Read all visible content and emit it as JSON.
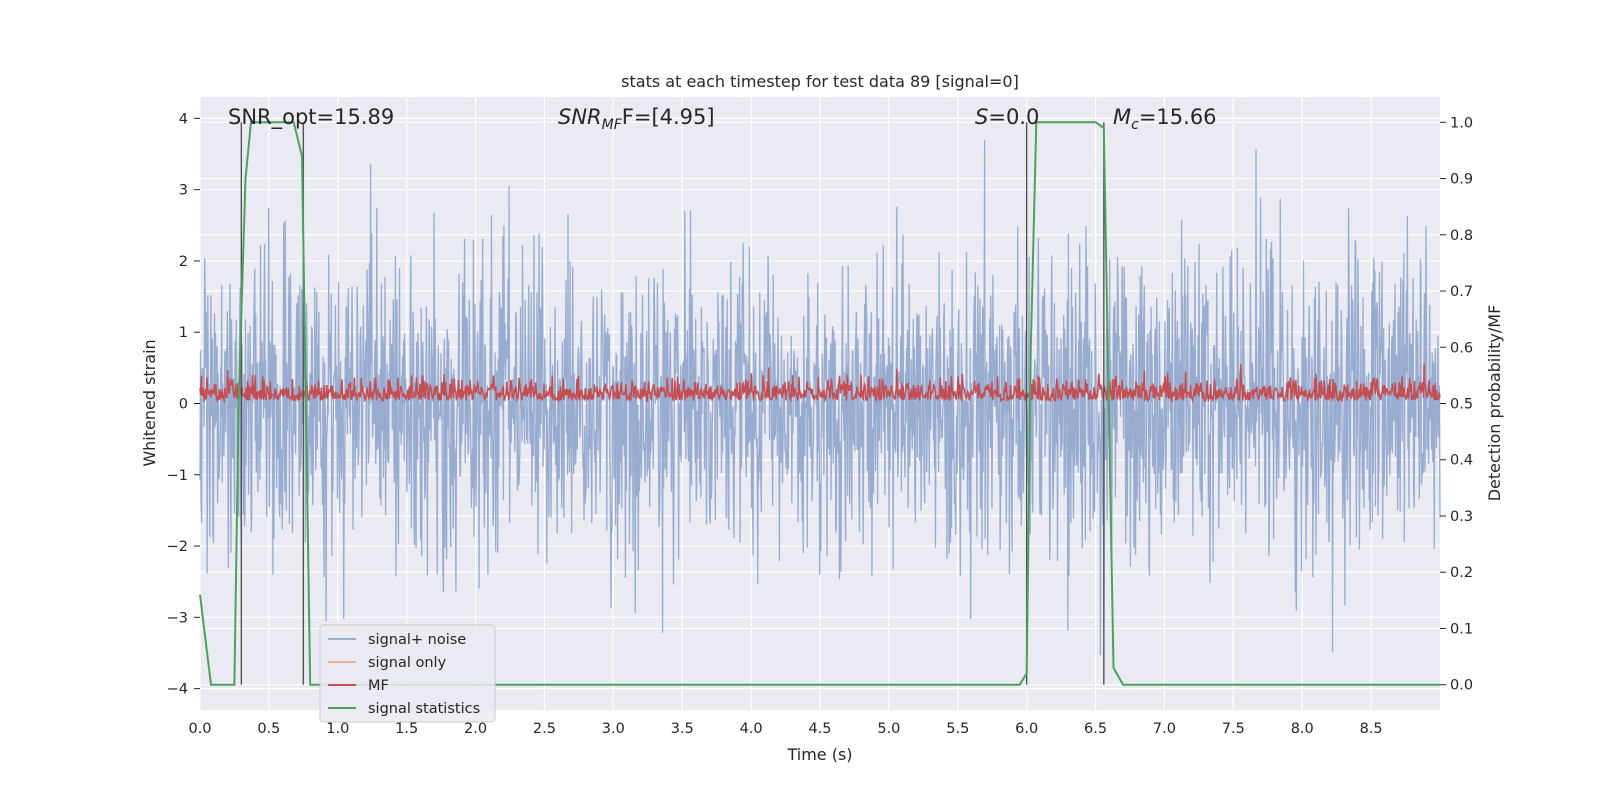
{
  "chart_data": {
    "type": "line",
    "title": "stats at each timestep for test data 89 [signal=0]",
    "xlabel": "Time (s)",
    "ylabel_left": "Whitened strain",
    "ylabel_right": "Detection probability/MF",
    "xlim": [
      0,
      9.0
    ],
    "ylim_left": [
      -4.3,
      4.3
    ],
    "ylim_right": [
      -0.045,
      1.045
    ],
    "x_ticks": [
      "0.0",
      "0.5",
      "1.0",
      "1.5",
      "2.0",
      "2.5",
      "3.0",
      "3.5",
      "4.0",
      "4.5",
      "5.0",
      "5.5",
      "6.0",
      "6.5",
      "7.0",
      "7.5",
      "8.0",
      "8.5"
    ],
    "y_left_ticks": [
      "4",
      "3",
      "2",
      "1",
      "0",
      "−1",
      "−2",
      "−3",
      "−4"
    ],
    "y_right_ticks": [
      "1.0",
      "0.9",
      "0.8",
      "0.7",
      "0.6",
      "0.5",
      "0.4",
      "0.3",
      "0.2",
      "0.1",
      "0.0"
    ],
    "grid": true,
    "legend_position": "lower-left",
    "annotations": {
      "snr_opt": "SNR_opt=15.89",
      "snr_mf_prefix": "SNR",
      "snr_mf_sub": "MF",
      "snr_mf_value": "F=[4.95]",
      "s_label": "S",
      "s_value": "=0.0",
      "mc_label": "M",
      "mc_sub": "c",
      "mc_value": "=15.66"
    },
    "vertical_markers_s": [
      0.3,
      0.75,
      6.0,
      6.56
    ],
    "series": [
      {
        "name": "signal+ noise",
        "color": "#98acd0",
        "axis": "left",
        "description_values": "whitened strain noise, approx range -3.7 to 4.0",
        "envelope": {
          "typical_abs_max": 2.5,
          "peak_max": 4.0,
          "peak_min": -3.7
        }
      },
      {
        "name": "signal only",
        "color": "#eeb295",
        "axis": "left",
        "values": []
      },
      {
        "name": "MF",
        "color": "#c44e52",
        "axis": "right",
        "range": [
          0.5,
          0.56
        ]
      },
      {
        "name": "signal statistics",
        "color": "#4ea15c",
        "axis": "right",
        "points": [
          [
            0.0,
            0.16
          ],
          [
            0.08,
            0.0
          ],
          [
            0.25,
            0.0
          ],
          [
            0.28,
            0.5
          ],
          [
            0.33,
            0.9
          ],
          [
            0.37,
            1.0
          ],
          [
            0.68,
            1.0
          ],
          [
            0.74,
            0.94
          ],
          [
            0.8,
            0.0
          ],
          [
            5.95,
            0.0
          ],
          [
            6.0,
            0.02
          ],
          [
            6.03,
            0.6
          ],
          [
            6.07,
            1.0
          ],
          [
            6.5,
            1.0
          ],
          [
            6.56,
            0.99
          ],
          [
            6.63,
            0.03
          ],
          [
            6.7,
            0.0
          ],
          [
            9.0,
            0.0
          ]
        ]
      }
    ]
  }
}
